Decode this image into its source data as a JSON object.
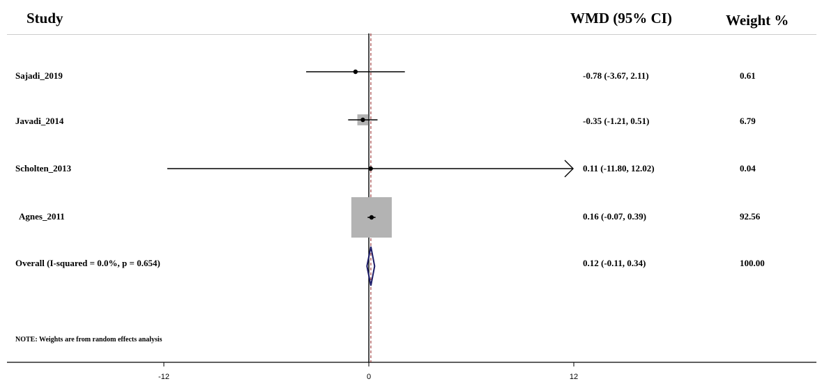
{
  "headers": {
    "study": "Study",
    "effect": "WMD (95% CI)",
    "weight": "Weight %"
  },
  "note": "NOTE: Weights are from random effects analysis",
  "chart_data": {
    "type": "forest",
    "x_ticks": [
      -12,
      0,
      12
    ],
    "x_tick_labels": [
      "-12",
      "0",
      "12"
    ],
    "null_line": 0,
    "overall_line": 0.12,
    "studies": [
      {
        "label": "Sajadi_2019",
        "estimate": -0.78,
        "lower": -3.67,
        "upper": 2.11,
        "ci_text": "-0.78 (-3.67, 2.11)",
        "weight": 0.61,
        "weight_text": "0.61",
        "arrow_right": false
      },
      {
        "label": "Javadi_2014",
        "estimate": -0.35,
        "lower": -1.21,
        "upper": 0.51,
        "ci_text": "-0.35 (-1.21, 0.51)",
        "weight": 6.79,
        "weight_text": "6.79",
        "arrow_right": false
      },
      {
        "label": "Scholten_2013",
        "estimate": 0.11,
        "lower": -11.8,
        "upper": 12.02,
        "ci_text": "0.11 (-11.80, 12.02)",
        "weight": 0.04,
        "weight_text": "0.04",
        "arrow_right": true
      },
      {
        "label": "Agnes_2011",
        "estimate": 0.16,
        "lower": -0.07,
        "upper": 0.39,
        "ci_text": "0.16 (-0.07, 0.39)",
        "weight": 92.56,
        "weight_text": "92.56",
        "arrow_right": false
      }
    ],
    "overall": {
      "label": "Overall  (I-squared = 0.0%, p = 0.654)",
      "estimate": 0.12,
      "lower": -0.11,
      "upper": 0.34,
      "ci_text": "0.12 (-0.11, 0.34)",
      "weight_text": "100.00"
    },
    "colors": {
      "weight_box": "#b3b3b3",
      "diamond": "#1a1a66",
      "overall_line": "#8b1a1a",
      "line": "#000000"
    }
  }
}
